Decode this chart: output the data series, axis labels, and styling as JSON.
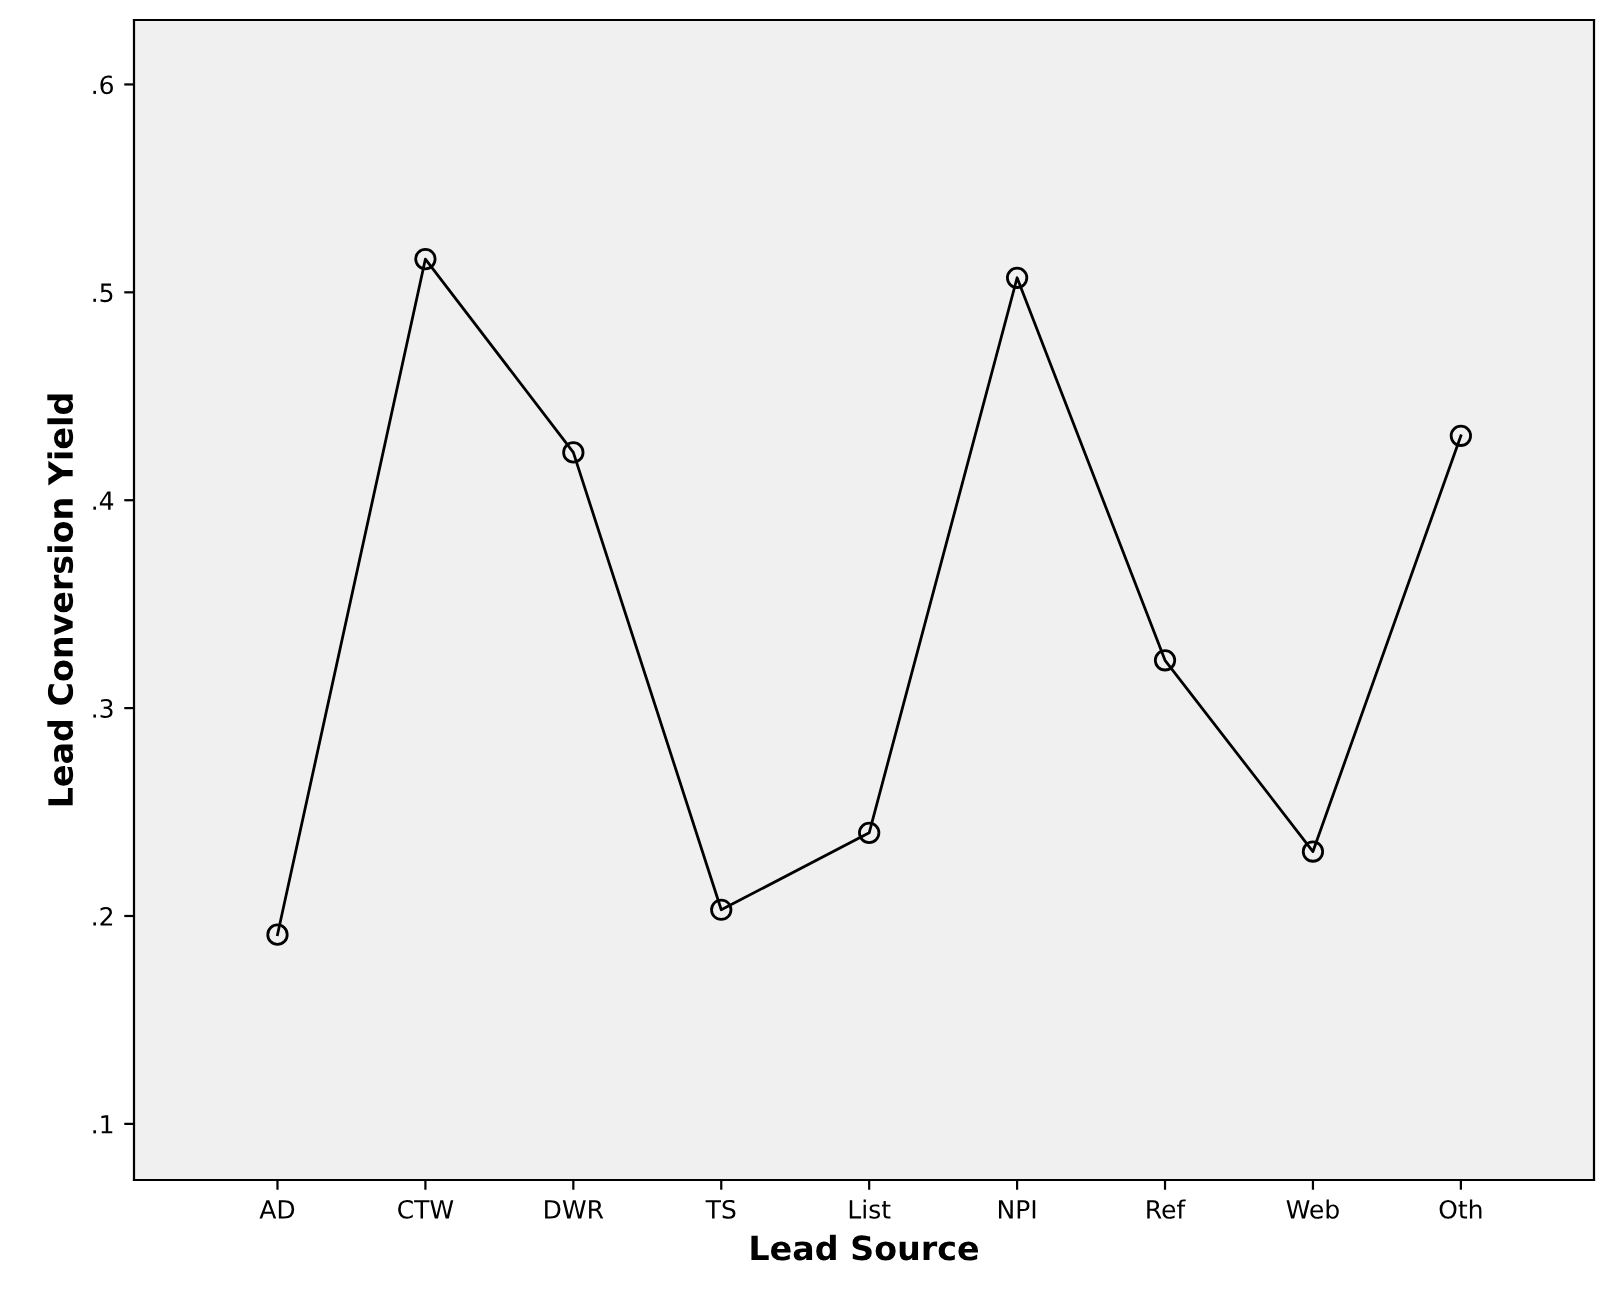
{
  "chart_data": {
    "type": "line",
    "xlabel": "Lead Source",
    "ylabel": "Lead Conversion Yield",
    "categories": [
      "AD",
      "CTW",
      "DWR",
      "TS",
      "List",
      "NPI",
      "Ref",
      "Web",
      "Oth"
    ],
    "series": [
      {
        "color": "#000000",
        "values": [
          0.191,
          0.516,
          0.423,
          0.203,
          0.24,
          0.507,
          0.323,
          0.231,
          0.431
        ]
      }
    ],
    "ylim": [
      0.073,
      0.631
    ],
    "yticks": [
      {
        "value": 0.1,
        "label": ".1"
      },
      {
        "value": 0.2,
        "label": ".2"
      },
      {
        "value": 0.3,
        "label": ".3"
      },
      {
        "value": 0.4,
        "label": ".4"
      },
      {
        "value": 0.5,
        "label": ".5"
      },
      {
        "value": 0.6,
        "label": ".6"
      }
    ],
    "marker": "circle",
    "line_style": "solid",
    "grid": false,
    "legend": false
  }
}
